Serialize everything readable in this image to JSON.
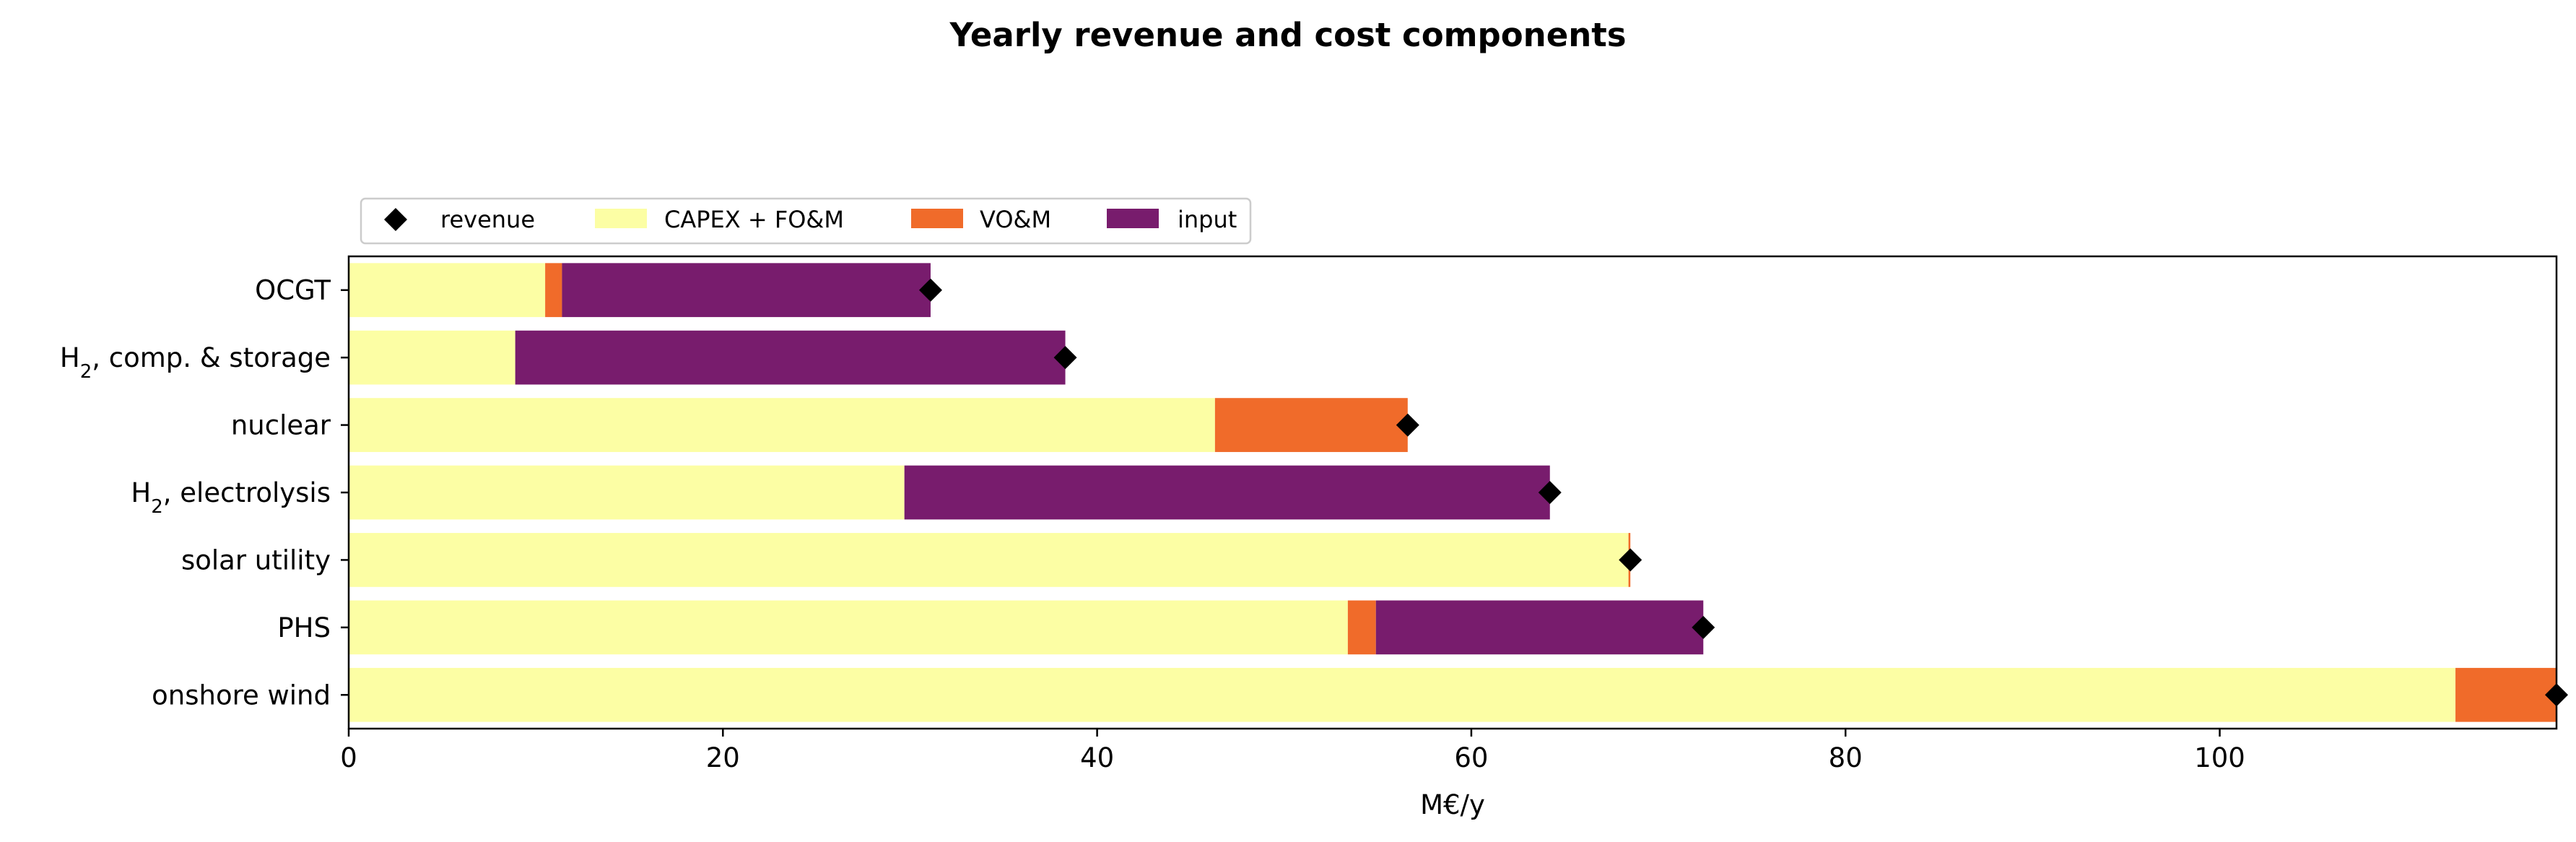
{
  "chart_data": {
    "type": "bar",
    "orientation": "horizontal",
    "stacked": true,
    "title": "Yearly revenue and cost components",
    "xlabel": "M€/y",
    "ylabel": "",
    "xlim": [
      0,
      118
    ],
    "xticks": [
      0,
      20,
      40,
      60,
      80,
      100
    ],
    "grid": false,
    "legend_position": "top-left, above axes",
    "categories": [
      "OCGT",
      "H₂, comp. & storage",
      "nuclear",
      "H₂, electrolysis",
      "solar utility",
      "PHS",
      "onshore wind"
    ],
    "series": [
      {
        "name": "CAPEX + FO&M",
        "color": "#fcfea4",
        "values": [
          10.5,
          8.9,
          46.3,
          29.7,
          68.4,
          53.4,
          112.6
        ]
      },
      {
        "name": "VO&M",
        "color": "#f06b2a",
        "values": [
          0.9,
          0,
          10.3,
          0,
          0.1,
          1.5,
          5.4
        ]
      },
      {
        "name": "input",
        "color": "#781c6d",
        "values": [
          19.7,
          29.4,
          0,
          34.5,
          0,
          17.5,
          0
        ]
      }
    ],
    "markers": {
      "name": "revenue",
      "color": "#000000",
      "shape": "diamond",
      "values": [
        31.1,
        38.3,
        56.6,
        64.2,
        68.5,
        72.4,
        118.0
      ]
    }
  }
}
